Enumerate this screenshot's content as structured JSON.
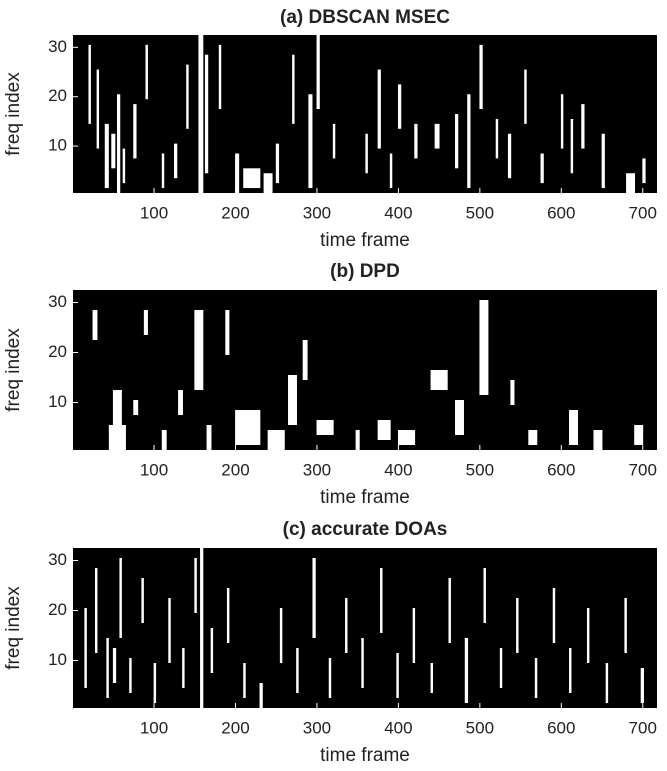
{
  "chart_data": [
    {
      "type": "image",
      "title": "(a) DBSCAN MSEC",
      "xlabel": "time frame",
      "ylabel": "freq index",
      "xlim": [
        0.5,
        717.5
      ],
      "ylim": [
        0.5,
        32.5
      ],
      "xticks": [
        100,
        200,
        300,
        400,
        500,
        600,
        700
      ],
      "yticks": [
        10,
        20,
        30
      ],
      "background": "#000000",
      "color": "#ffffff",
      "regions": [
        [
          40,
          44,
          2,
          14
        ],
        [
          48,
          52,
          6,
          12
        ],
        [
          55,
          58,
          1,
          20
        ],
        [
          62,
          64,
          3,
          9
        ],
        [
          30,
          32,
          10,
          25
        ],
        [
          20,
          22,
          15,
          30
        ],
        [
          75,
          78,
          8,
          18
        ],
        [
          90,
          92,
          20,
          30
        ],
        [
          110,
          112,
          2,
          8
        ],
        [
          125,
          128,
          4,
          10
        ],
        [
          140,
          142,
          14,
          26
        ],
        [
          155,
          160,
          1,
          32
        ],
        [
          163,
          166,
          5,
          28
        ],
        [
          180,
          182,
          18,
          30
        ],
        [
          200,
          204,
          1,
          8
        ],
        [
          210,
          230,
          2,
          5
        ],
        [
          235,
          245,
          1,
          4
        ],
        [
          250,
          253,
          3,
          10
        ],
        [
          270,
          272,
          15,
          28
        ],
        [
          290,
          294,
          2,
          20
        ],
        [
          300,
          303,
          18,
          32
        ],
        [
          320,
          322,
          8,
          14
        ],
        [
          360,
          362,
          5,
          12
        ],
        [
          375,
          378,
          10,
          25
        ],
        [
          390,
          392,
          2,
          8
        ],
        [
          400,
          403,
          14,
          22
        ],
        [
          420,
          423,
          8,
          14
        ],
        [
          445,
          450,
          10,
          14
        ],
        [
          470,
          473,
          6,
          16
        ],
        [
          485,
          488,
          2,
          20
        ],
        [
          500,
          503,
          18,
          30
        ],
        [
          520,
          522,
          8,
          15
        ],
        [
          535,
          538,
          4,
          12
        ],
        [
          555,
          557,
          15,
          25
        ],
        [
          575,
          578,
          3,
          8
        ],
        [
          600,
          602,
          10,
          20
        ],
        [
          612,
          614,
          5,
          15
        ],
        [
          625,
          628,
          10,
          18
        ],
        [
          650,
          653,
          2,
          12
        ],
        [
          680,
          690,
          1,
          4
        ],
        [
          700,
          703,
          3,
          7
        ]
      ]
    },
    {
      "type": "image",
      "title": "(b) DPD",
      "xlabel": "time frame",
      "ylabel": "freq index",
      "xlim": [
        0.5,
        717.5
      ],
      "ylim": [
        0.5,
        32.5
      ],
      "xticks": [
        100,
        200,
        300,
        400,
        500,
        600,
        700
      ],
      "yticks": [
        10,
        20,
        30
      ],
      "background": "#000000",
      "color": "#ffffff",
      "regions": [
        [
          25,
          30,
          23,
          28
        ],
        [
          45,
          65,
          1,
          5
        ],
        [
          50,
          60,
          5,
          12
        ],
        [
          75,
          80,
          8,
          10
        ],
        [
          88,
          92,
          24,
          28
        ],
        [
          110,
          115,
          1,
          4
        ],
        [
          130,
          135,
          8,
          12
        ],
        [
          150,
          160,
          13,
          28
        ],
        [
          165,
          170,
          1,
          5
        ],
        [
          188,
          192,
          20,
          28
        ],
        [
          200,
          230,
          2,
          8
        ],
        [
          240,
          260,
          1,
          4
        ],
        [
          265,
          275,
          6,
          15
        ],
        [
          283,
          288,
          15,
          22
        ],
        [
          300,
          320,
          4,
          6
        ],
        [
          348,
          352,
          1,
          4
        ],
        [
          375,
          390,
          3,
          6
        ],
        [
          400,
          420,
          2,
          4
        ],
        [
          440,
          460,
          13,
          16
        ],
        [
          470,
          480,
          4,
          10
        ],
        [
          500,
          510,
          12,
          30
        ],
        [
          538,
          542,
          10,
          14
        ],
        [
          560,
          570,
          2,
          4
        ],
        [
          610,
          620,
          2,
          8
        ],
        [
          640,
          650,
          1,
          4
        ],
        [
          690,
          700,
          2,
          5
        ]
      ]
    },
    {
      "type": "image",
      "title": "(c) accurate DOAs",
      "xlabel": "time frame",
      "ylabel": "freq index",
      "xlim": [
        0.5,
        717.5
      ],
      "ylim": [
        0.5,
        32.5
      ],
      "xticks": [
        100,
        200,
        300,
        400,
        500,
        600,
        700
      ],
      "yticks": [
        10,
        20,
        30
      ],
      "background": "#000000",
      "color": "#ffffff",
      "regions": [
        [
          15,
          17,
          5,
          20
        ],
        [
          28,
          30,
          12,
          28
        ],
        [
          42,
          44,
          3,
          14
        ],
        [
          50,
          53,
          6,
          12
        ],
        [
          58,
          60,
          15,
          30
        ],
        [
          70,
          72,
          4,
          10
        ],
        [
          85,
          87,
          18,
          26
        ],
        [
          100,
          102,
          2,
          9
        ],
        [
          118,
          120,
          10,
          22
        ],
        [
          135,
          137,
          5,
          12
        ],
        [
          150,
          152,
          20,
          30
        ],
        [
          157,
          160,
          1,
          32
        ],
        [
          170,
          172,
          8,
          16
        ],
        [
          190,
          192,
          14,
          24
        ],
        [
          210,
          212,
          3,
          9
        ],
        [
          230,
          233,
          1,
          5
        ],
        [
          255,
          257,
          10,
          20
        ],
        [
          275,
          277,
          4,
          12
        ],
        [
          295,
          298,
          15,
          30
        ],
        [
          315,
          317,
          3,
          10
        ],
        [
          335,
          337,
          12,
          22
        ],
        [
          355,
          357,
          5,
          14
        ],
        [
          378,
          380,
          16,
          28
        ],
        [
          398,
          400,
          3,
          11
        ],
        [
          418,
          420,
          10,
          20
        ],
        [
          440,
          442,
          4,
          9
        ],
        [
          462,
          464,
          14,
          26
        ],
        [
          482,
          485,
          2,
          14
        ],
        [
          505,
          507,
          18,
          28
        ],
        [
          525,
          527,
          5,
          12
        ],
        [
          545,
          547,
          12,
          22
        ],
        [
          568,
          570,
          3,
          10
        ],
        [
          590,
          592,
          14,
          24
        ],
        [
          610,
          612,
          4,
          12
        ],
        [
          632,
          634,
          10,
          20
        ],
        [
          655,
          657,
          2,
          9
        ],
        [
          678,
          680,
          12,
          22
        ],
        [
          698,
          701,
          2,
          8
        ]
      ]
    }
  ]
}
